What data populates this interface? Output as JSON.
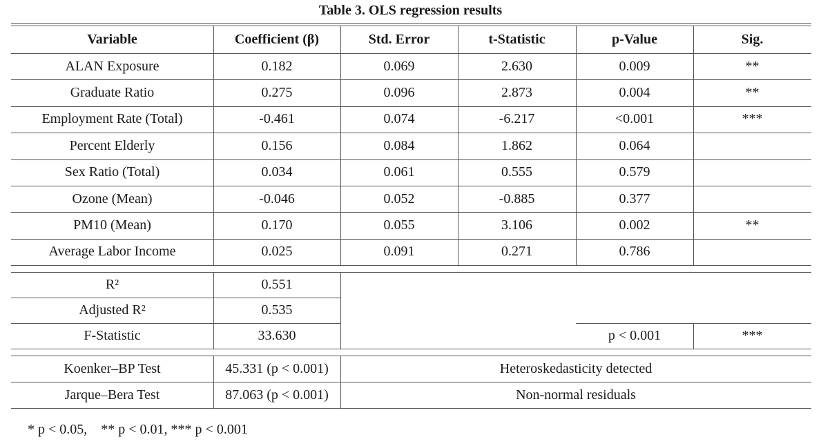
{
  "title": "Table 3. OLS regression results",
  "columns": [
    "Variable",
    "Coefficient (β)",
    "Std. Error",
    "t-Statistic",
    "p-Value",
    "Sig."
  ],
  "rows": [
    [
      "ALAN Exposure",
      "0.182",
      "0.069",
      "2.630",
      "0.009",
      "**"
    ],
    [
      "Graduate Ratio",
      "0.275",
      "0.096",
      "2.873",
      "0.004",
      "**"
    ],
    [
      "Employment Rate (Total)",
      "-0.461",
      "0.074",
      "-6.217",
      "<0.001",
      "***"
    ],
    [
      "Percent Elderly",
      "0.156",
      "0.084",
      "1.862",
      "0.064",
      ""
    ],
    [
      "Sex Ratio (Total)",
      "0.034",
      "0.061",
      "0.555",
      "0.579",
      ""
    ],
    [
      "Ozone (Mean)",
      "-0.046",
      "0.052",
      "-0.885",
      "0.377",
      ""
    ],
    [
      "PM10 (Mean)",
      "0.170",
      "0.055",
      "3.106",
      "0.002",
      "**"
    ],
    [
      "Average Labor Income",
      "0.025",
      "0.091",
      "0.271",
      "0.786",
      ""
    ]
  ],
  "model_fit": [
    {
      "label": "R²",
      "value": "0.551"
    },
    {
      "label": "Adjusted R²",
      "value": "0.535"
    },
    {
      "label": "F-Statistic",
      "value": "33.630",
      "p": "p < 0.001",
      "sig": "***"
    }
  ],
  "diagnostics": [
    {
      "label": "Koenker–BP Test",
      "value": "45.331 (p < 0.001)",
      "note": "Heteroskedasticity detected"
    },
    {
      "label": "Jarque–Bera Test",
      "value": "87.063 (p < 0.001)",
      "note": "Non-normal residuals"
    }
  ],
  "footnote": "* p < 0.05,    ** p < 0.01, *** p < 0.001"
}
